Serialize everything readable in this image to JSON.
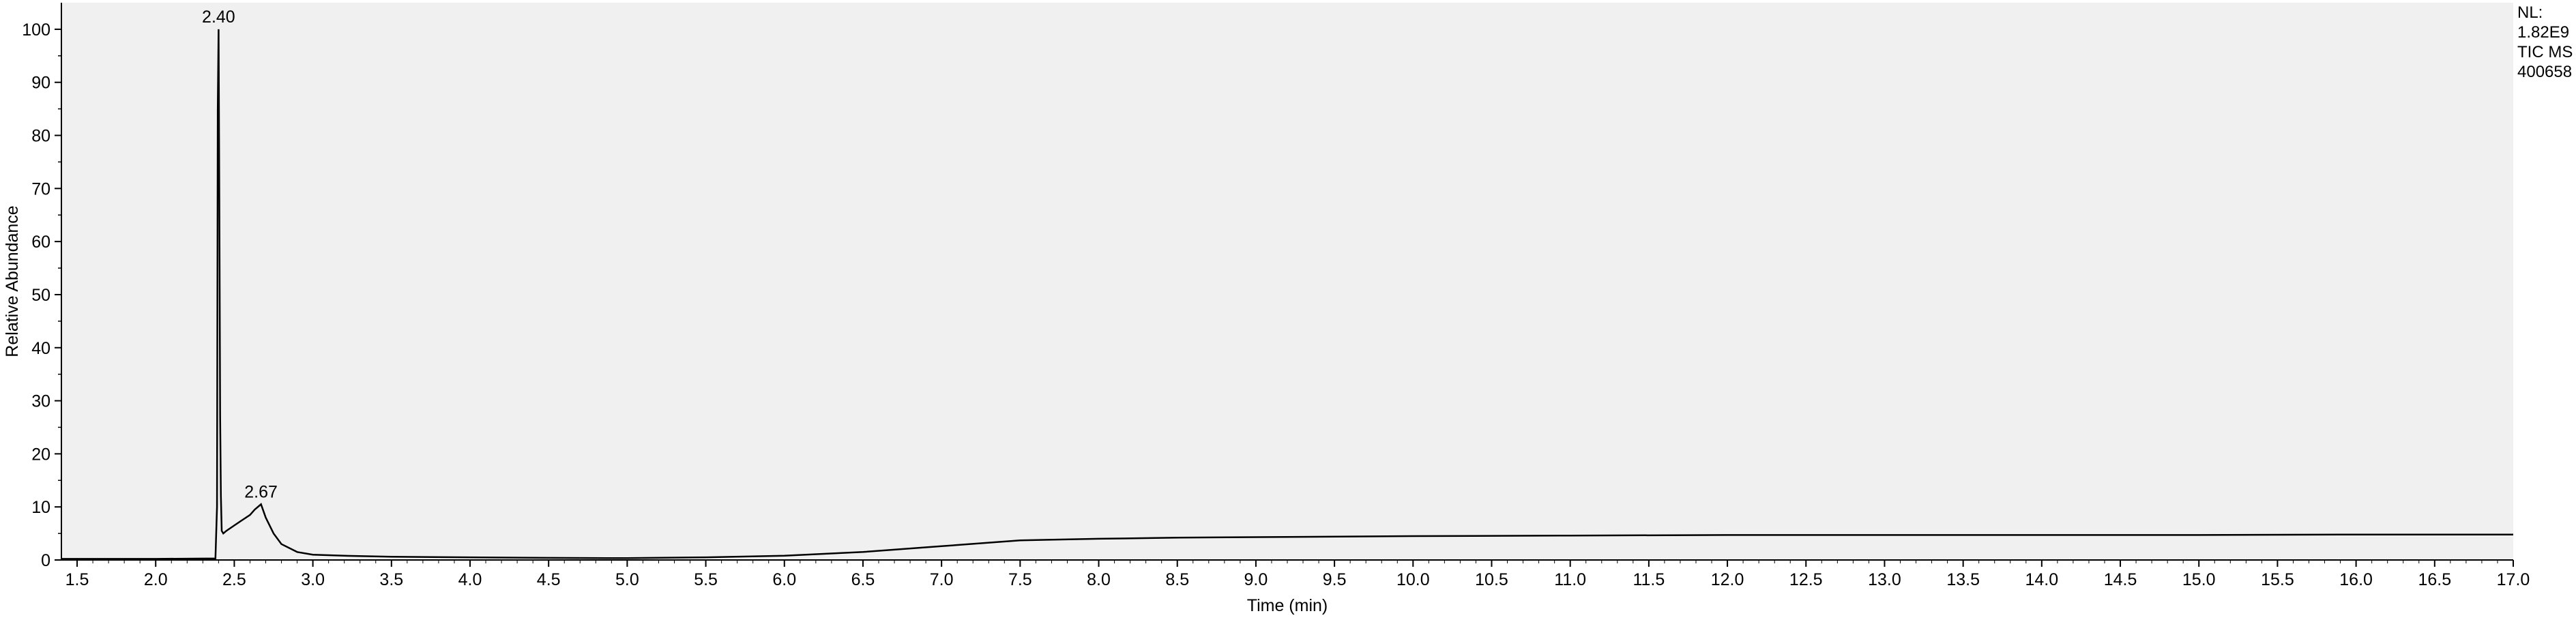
{
  "chart_data": {
    "type": "line",
    "title": "",
    "xlabel": "Time (min)",
    "ylabel": "Relative Abundance",
    "xlim": [
      1.4,
      17.0
    ],
    "ylim": [
      0,
      105
    ],
    "x_ticks": [
      1.5,
      2.0,
      2.5,
      3.0,
      3.5,
      4.0,
      4.5,
      5.0,
      5.5,
      6.0,
      6.5,
      7.0,
      7.5,
      8.0,
      8.5,
      9.0,
      9.5,
      10.0,
      10.5,
      11.0,
      11.5,
      12.0,
      12.5,
      13.0,
      13.5,
      14.0,
      14.5,
      15.0,
      15.5,
      16.0,
      16.5,
      17.0
    ],
    "x_tick_labels": [
      "1.5",
      "2.0",
      "2.5",
      "3.0",
      "3.5",
      "4.0",
      "4.5",
      "5.0",
      "5.5",
      "6.0",
      "6.5",
      "7.0",
      "7.5",
      "8.0",
      "8.5",
      "9.0",
      "9.5",
      "10.0",
      "10.5",
      "11.0",
      "11.5",
      "12.0",
      "12.5",
      "13.0",
      "13.5",
      "14.0",
      "14.5",
      "15.0",
      "15.5",
      "16.0",
      "16.5",
      "17.0"
    ],
    "y_ticks": [
      0,
      10,
      20,
      30,
      40,
      50,
      60,
      70,
      80,
      90,
      100
    ],
    "y_tick_labels": [
      "0",
      "10",
      "20",
      "30",
      "40",
      "50",
      "60",
      "70",
      "80",
      "90",
      "100"
    ],
    "grid": false,
    "plot_background": "#f0f0f0",
    "line_color": "#000000",
    "series": [
      {
        "x": [
          1.4,
          2.0,
          2.38,
          2.39,
          2.395,
          2.4,
          2.405,
          2.41,
          2.415,
          2.42,
          2.43,
          2.45,
          2.5,
          2.55,
          2.6,
          2.63,
          2.67,
          2.7,
          2.75,
          2.8,
          2.9,
          3.0,
          3.2,
          3.5,
          4.0,
          4.5,
          5.0,
          5.5,
          6.0,
          6.5,
          7.0,
          7.5,
          8.0,
          8.5,
          9.0,
          10.0,
          11.0,
          12.0,
          13.0,
          14.0,
          15.0,
          16.0,
          17.0
        ],
        "y": [
          0.2,
          0.2,
          0.3,
          10,
          85,
          100,
          68,
          27,
          12,
          5.5,
          5.0,
          5.5,
          6.5,
          7.5,
          8.5,
          9.5,
          10.5,
          8,
          5,
          3,
          1.5,
          1.0,
          0.8,
          0.6,
          0.5,
          0.4,
          0.35,
          0.5,
          0.8,
          1.5,
          2.6,
          3.7,
          4.0,
          4.2,
          4.3,
          4.5,
          4.6,
          4.7,
          4.7,
          4.7,
          4.7,
          4.8,
          4.8
        ]
      }
    ],
    "peak_annotations": [
      {
        "x": 2.4,
        "y": 100,
        "label": "2.40"
      },
      {
        "x": 2.67,
        "y": 10.5,
        "label": "2.67"
      }
    ]
  },
  "info_box": {
    "lines": [
      "NL:",
      "1.82E9",
      "TIC  MS",
      "400658"
    ]
  }
}
